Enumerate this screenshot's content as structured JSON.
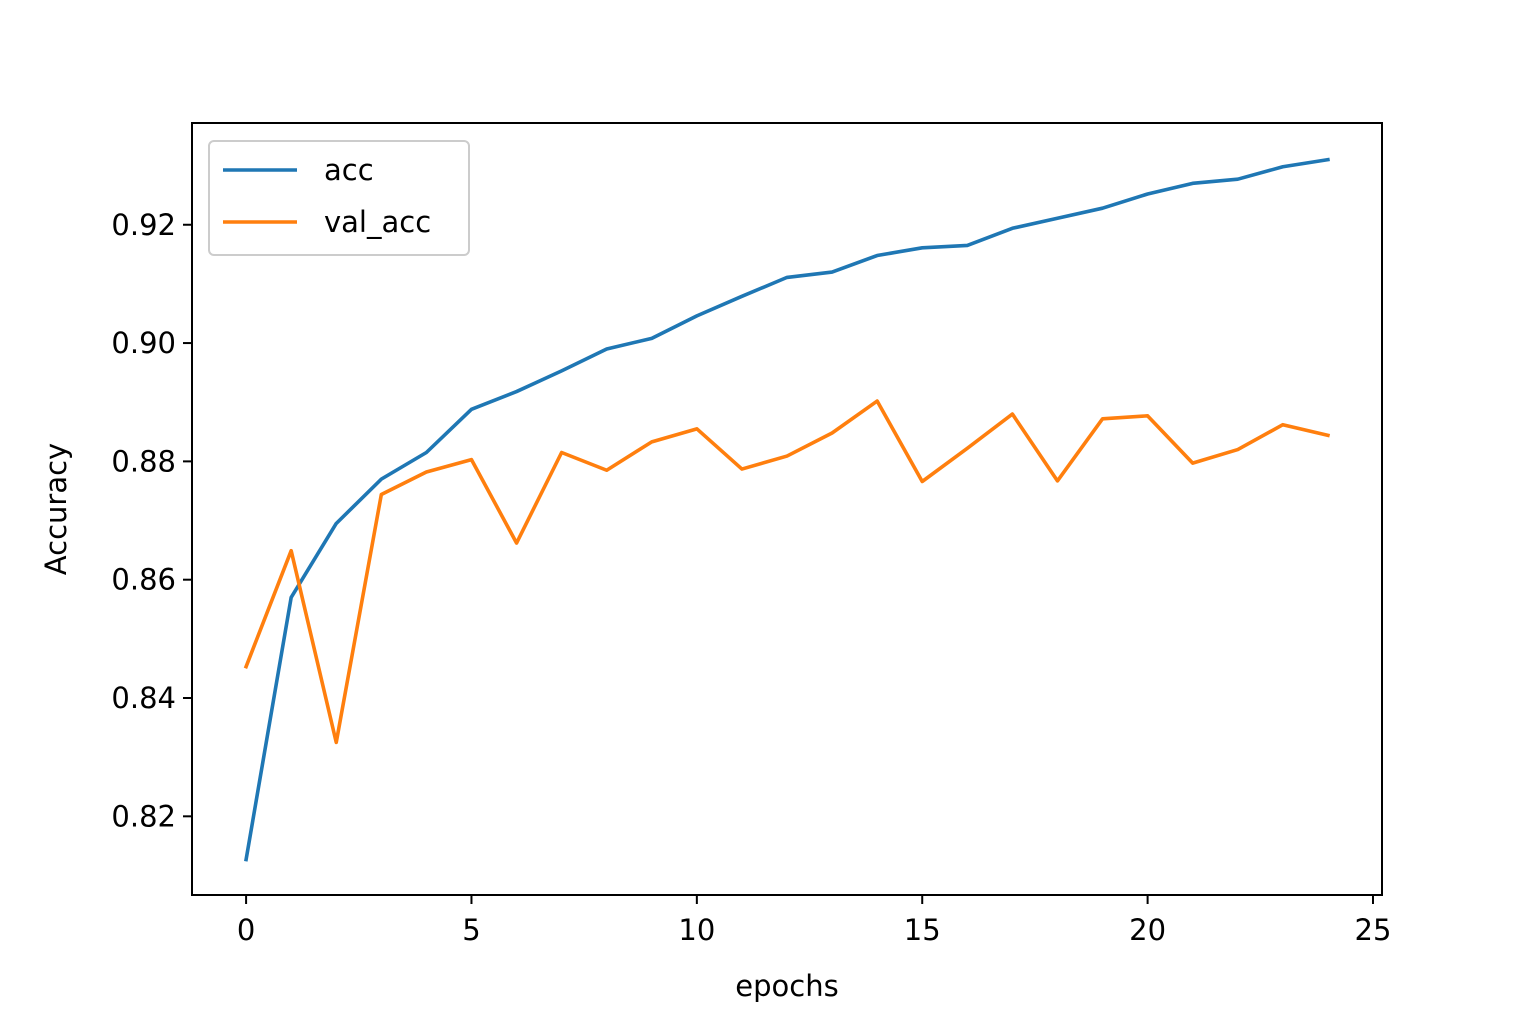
{
  "chart_data": {
    "type": "line",
    "title": "",
    "xlabel": "epochs",
    "ylabel": "Accuracy",
    "xlim": [
      -1.2,
      25.2
    ],
    "ylim": [
      0.8067,
      0.9372
    ],
    "x_ticks": [
      0,
      5,
      10,
      15,
      20,
      25
    ],
    "x_tick_labels": [
      "0",
      "5",
      "10",
      "15",
      "20",
      "25"
    ],
    "y_ticks": [
      0.82,
      0.84,
      0.86,
      0.88,
      0.9,
      0.92
    ],
    "y_tick_labels": [
      "0.82",
      "0.84",
      "0.86",
      "0.88",
      "0.90",
      "0.92"
    ],
    "grid": false,
    "legend_position": "top-left",
    "x": [
      0,
      1,
      2,
      3,
      4,
      5,
      6,
      7,
      8,
      9,
      10,
      11,
      12,
      13,
      14,
      15,
      16,
      17,
      18,
      19,
      20,
      21,
      22,
      23,
      24
    ],
    "series": [
      {
        "name": "acc",
        "color": "#1f77b4",
        "values": [
          0.8127,
          0.857,
          0.8695,
          0.877,
          0.8815,
          0.8888,
          0.8918,
          0.8953,
          0.899,
          0.9008,
          0.9046,
          0.9079,
          0.9111,
          0.912,
          0.9148,
          0.9161,
          0.9165,
          0.9194,
          0.9211,
          0.9228,
          0.9252,
          0.927,
          0.9277,
          0.9298,
          0.931
        ]
      },
      {
        "name": "val_acc",
        "color": "#ff7f0e",
        "values": [
          0.8453,
          0.8649,
          0.8325,
          0.8744,
          0.8782,
          0.8803,
          0.8662,
          0.8815,
          0.8785,
          0.8833,
          0.8855,
          0.8787,
          0.8809,
          0.8848,
          0.8902,
          0.8766,
          0.8822,
          0.888,
          0.8767,
          0.8872,
          0.8877,
          0.8797,
          0.882,
          0.8862,
          0.8844
        ]
      }
    ]
  }
}
